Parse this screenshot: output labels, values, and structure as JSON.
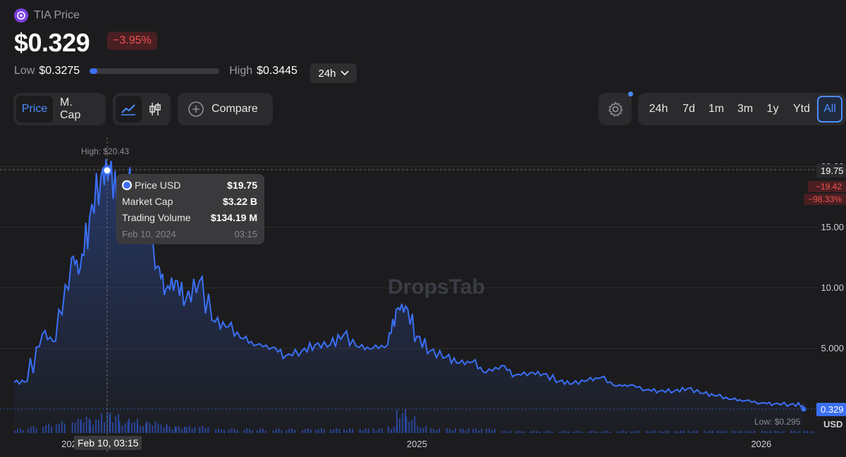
{
  "header": {
    "token_title": "TIA Price",
    "price": "$0.329",
    "change": "−3.95%",
    "low_label": "Low",
    "low_value": "$0.3275",
    "high_label": "High",
    "high_value": "$0.3445",
    "range_position": 0.06,
    "range_period": "24h"
  },
  "toolbar": {
    "metric_tabs": [
      "Price",
      "M. Cap"
    ],
    "compare_label": "Compare",
    "timeframes": [
      "24h",
      "7d",
      "1m",
      "3m",
      "1y",
      "Ytd",
      "All"
    ],
    "active_timeframe": "All"
  },
  "colors": {
    "accent": "#4c8dff",
    "line": "#3b6ff5",
    "negative": "#ef5350"
  },
  "chart": {
    "watermark": "DropsTab",
    "high_label": "High: $20.43",
    "low_label": "Low: $0.295",
    "currency": "USD",
    "current_price_tag": "0.329",
    "hover_price_tag": "19.75",
    "hover_change_abs": "−19.42",
    "hover_change_pct": "−98.33%",
    "crosshair_label": "Feb 10, 03:15"
  },
  "tooltip": {
    "rows": [
      {
        "label": "Price USD",
        "value": "$19.75"
      },
      {
        "label": "Market Cap",
        "value": "$3.22 B"
      },
      {
        "label": "Trading Volume",
        "value": "$134.19 M"
      }
    ],
    "date": "Feb 10, 2024",
    "time": "03:15"
  },
  "chart_data": {
    "type": "area",
    "ylim": [
      0,
      20
    ],
    "y_ticks": [
      "20.00",
      "15.00",
      "10.00",
      "5.000"
    ],
    "x_ticks": [
      "2024",
      "2025",
      "2026"
    ],
    "x": [
      "2023-11-01",
      "2023-11-15",
      "2023-12-01",
      "2023-12-15",
      "2024-01-01",
      "2024-01-10",
      "2024-01-20",
      "2024-02-01",
      "2024-02-10",
      "2024-02-20",
      "2024-03-01",
      "2024-03-10",
      "2024-03-20",
      "2024-04-01",
      "2024-04-10",
      "2024-04-20",
      "2024-05-01",
      "2024-05-15",
      "2024-06-01",
      "2024-06-15",
      "2024-07-01",
      "2024-07-15",
      "2024-08-01",
      "2024-08-15",
      "2024-09-01",
      "2024-09-15",
      "2024-10-01",
      "2024-10-15",
      "2024-11-01",
      "2024-11-15",
      "2024-12-01",
      "2024-12-10",
      "2024-12-20",
      "2025-01-01",
      "2025-01-15",
      "2025-02-01",
      "2025-02-15",
      "2025-03-01",
      "2025-03-15",
      "2025-04-01",
      "2025-04-15",
      "2025-05-01",
      "2025-05-15",
      "2025-06-01",
      "2025-06-15",
      "2025-07-01",
      "2025-07-15",
      "2025-08-01",
      "2025-08-15",
      "2025-09-01",
      "2025-09-15",
      "2025-10-01",
      "2025-10-15",
      "2025-11-01",
      "2025-11-15",
      "2025-12-01",
      "2025-12-15",
      "2026-01-01",
      "2026-01-15",
      "2026-02-01",
      "2026-02-15"
    ],
    "y": [
      2.2,
      2.3,
      6.2,
      5.6,
      12.5,
      11.6,
      15.8,
      19.2,
      19.75,
      17.5,
      18.9,
      15.4,
      15.5,
      11.8,
      9.9,
      10.6,
      9.0,
      10.5,
      7.2,
      6.8,
      5.8,
      5.3,
      5.1,
      4.4,
      4.8,
      5.3,
      5.3,
      6.1,
      5.1,
      5.0,
      5.3,
      8.2,
      8.5,
      6.0,
      4.8,
      4.3,
      3.8,
      3.9,
      3.0,
      3.6,
      2.8,
      3.0,
      2.9,
      2.3,
      2.1,
      2.4,
      2.6,
      1.9,
      2.0,
      1.6,
      1.5,
      1.5,
      1.7,
      1.3,
      1.1,
      0.8,
      0.7,
      0.5,
      0.45,
      0.4,
      0.329
    ],
    "volume": [
      0.2,
      0.3,
      0.4,
      0.5,
      0.6,
      0.7,
      0.6,
      0.9,
      0.8,
      0.5,
      0.6,
      0.4,
      0.5,
      0.4,
      0.3,
      0.3,
      0.3,
      0.3,
      0.2,
      0.2,
      0.2,
      0.2,
      0.2,
      0.2,
      0.2,
      0.2,
      0.2,
      0.2,
      0.2,
      0.2,
      0.3,
      1.0,
      0.7,
      0.3,
      0.2,
      0.2,
      0.2,
      0.2,
      0.2,
      0.1,
      0.1,
      0.1,
      0.1,
      0.1,
      0.1,
      0.1,
      0.1,
      0.1,
      0.1,
      0.1,
      0.1,
      0.1,
      0.1,
      0.1,
      0.1,
      0.1,
      0.1,
      0.1,
      0.1,
      0.1,
      0.1
    ]
  }
}
